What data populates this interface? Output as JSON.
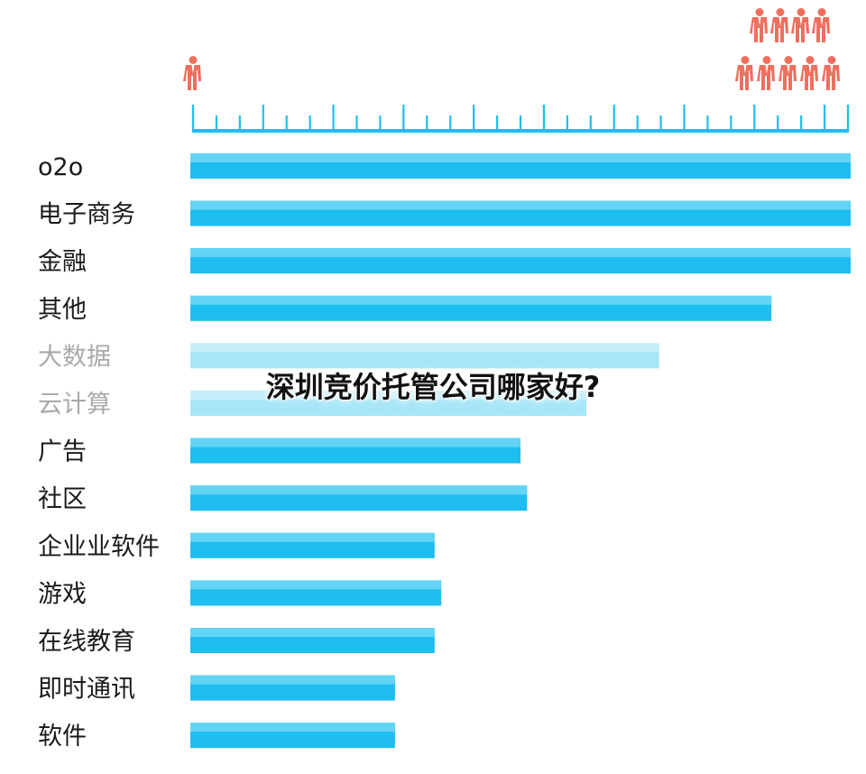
{
  "overlay": {
    "title": "深圳竞价托管公司哪家好?"
  },
  "chart_data": {
    "type": "bar",
    "orientation": "horizontal",
    "categories": [
      "o2o",
      "电子商务",
      "金融",
      "其他",
      "大数据",
      "云计算",
      "广告",
      "社区",
      "企业业软件",
      "游戏",
      "在线教育",
      "即时通讯",
      "软件"
    ],
    "values": [
      100,
      100,
      100,
      88,
      71,
      60,
      50,
      51,
      37,
      38,
      37,
      31,
      31
    ],
    "dimmed": [
      false,
      false,
      false,
      false,
      true,
      true,
      false,
      false,
      false,
      false,
      false,
      false,
      false
    ],
    "xlim": [
      0,
      100
    ],
    "colors": {
      "bar": "#1ebef0",
      "bar_light": "#63d4f6",
      "bar_dim": "#a7e6f8",
      "axis": "#1ebef0",
      "person": "#ef6f5f",
      "label": "#1a1a1a",
      "label_dim": "#a9a9a9"
    },
    "grid": false,
    "icon": "person-icon"
  }
}
